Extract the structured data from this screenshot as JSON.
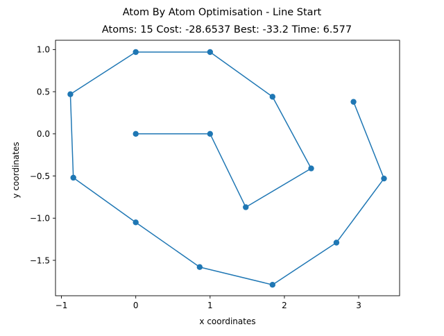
{
  "chart_data": {
    "type": "line",
    "title": "Atom By Atom Optimisation - Line Start",
    "subtitle": "Atoms: 15 Cost: -28.6537 Best: -33.2 Time: 6.577",
    "xlabel": "x coordinates",
    "ylabel": "y coordinates",
    "xlim": [
      -1.08,
      3.55
    ],
    "ylim": [
      -1.92,
      1.11
    ],
    "xticks": [
      -1,
      0,
      1,
      2,
      3
    ],
    "xtick_labels": [
      "−1",
      "0",
      "1",
      "2",
      "3"
    ],
    "yticks": [
      1.0,
      0.5,
      0.0,
      -0.5,
      -1.0,
      -1.5
    ],
    "ytick_labels": [
      "1.0",
      "0.5",
      "0.0",
      "−0.5",
      "−1.0",
      "−1.5"
    ],
    "grid": false,
    "legend": "none",
    "series": [
      {
        "color": "#1f77b4",
        "marker": "circle",
        "x": [
          0.0,
          1.0,
          1.48,
          2.36,
          1.84,
          1.0,
          0.0,
          -0.88,
          -0.84,
          0.0,
          0.86,
          1.84,
          2.7,
          3.34,
          2.93
        ],
        "y": [
          0.0,
          0.0,
          -0.87,
          -0.41,
          0.44,
          0.97,
          0.97,
          0.47,
          -0.52,
          -1.05,
          -1.58,
          -1.79,
          -1.29,
          -0.53,
          0.38
        ]
      }
    ]
  }
}
